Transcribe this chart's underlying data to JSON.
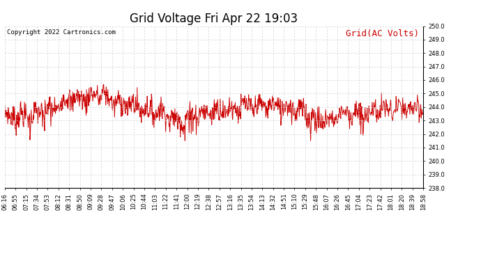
{
  "title": "Grid Voltage Fri Apr 22 19:03",
  "copyright": "Copyright 2022 Cartronics.com",
  "legend_label": "Grid(AC Volts)",
  "legend_color": "#cc0000",
  "line_color": "#cc0000",
  "background_color": "#ffffff",
  "grid_color": "#c8c8c8",
  "ylim": [
    238.0,
    250.0
  ],
  "yticks": [
    238.0,
    239.0,
    240.0,
    241.0,
    242.0,
    243.0,
    244.0,
    245.0,
    246.0,
    247.0,
    248.0,
    249.0,
    250.0
  ],
  "xtick_labels": [
    "06:16",
    "06:55",
    "07:15",
    "07:34",
    "07:53",
    "08:12",
    "08:31",
    "08:50",
    "09:09",
    "09:28",
    "09:47",
    "10:06",
    "10:25",
    "10:44",
    "11:03",
    "11:22",
    "11:41",
    "12:00",
    "12:19",
    "12:38",
    "12:57",
    "13:16",
    "13:35",
    "13:54",
    "14:13",
    "14:32",
    "14:51",
    "15:10",
    "15:29",
    "15:48",
    "16:07",
    "16:26",
    "16:45",
    "17:04",
    "17:23",
    "17:42",
    "18:01",
    "18:20",
    "18:39",
    "18:58"
  ],
  "title_fontsize": 12,
  "copyright_fontsize": 6.5,
  "legend_fontsize": 9,
  "tick_fontsize": 6,
  "line_width": 0.7,
  "figsize": [
    6.9,
    3.75
  ],
  "dpi": 100
}
